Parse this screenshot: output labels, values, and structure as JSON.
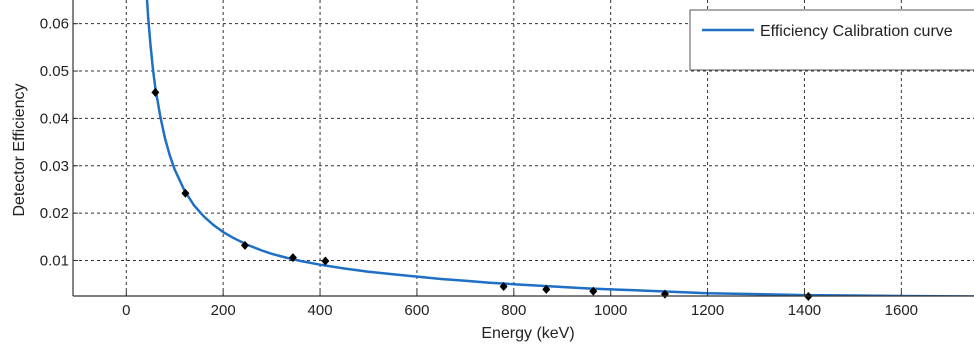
{
  "chart_data": {
    "type": "line",
    "xlabel": "Energy (keV)",
    "ylabel": "Detector Efficiency",
    "xlim": [
      -110,
      1750
    ],
    "ylim": [
      0.0025,
      0.065
    ],
    "xticks": [
      0,
      200,
      400,
      600,
      800,
      1000,
      1200,
      1400,
      1600
    ],
    "xtick_labels": [
      "0",
      "200",
      "400",
      "600",
      "800",
      "1000",
      "1200",
      "1400",
      "1600"
    ],
    "yticks": [
      0.01,
      0.02,
      0.03,
      0.04,
      0.05,
      0.06
    ],
    "ytick_labels": [
      "0.01",
      "0.02",
      "0.03",
      "0.04",
      "0.05",
      "0.06"
    ],
    "grid": true,
    "legend_position": "top-right",
    "series": [
      {
        "name": "Efficiency Calibration curve",
        "kind": "line",
        "color": "#1f6fc5",
        "x": [
          40,
          45,
          50,
          55,
          60,
          70,
          80,
          90,
          100,
          120,
          140,
          160,
          180,
          200,
          220,
          250,
          280,
          300,
          330,
          360,
          400,
          450,
          500,
          550,
          600,
          650,
          700,
          750,
          800,
          850,
          900,
          950,
          1000,
          1050,
          1100,
          1150,
          1200,
          1300,
          1400,
          1500,
          1600,
          1750
        ],
        "y": [
          0.0695,
          0.0615,
          0.0555,
          0.0505,
          0.0465,
          0.0405,
          0.0358,
          0.0321,
          0.0292,
          0.0248,
          0.0216,
          0.0193,
          0.0175,
          0.016,
          0.0148,
          0.0133,
          0.0121,
          0.0114,
          0.0106,
          0.0099,
          0.0091,
          0.0083,
          0.0076,
          0.0071,
          0.0066,
          0.0061,
          0.0057,
          0.0053,
          0.005,
          0.0047,
          0.0044,
          0.0041,
          0.0039,
          0.0037,
          0.0035,
          0.0033,
          0.0031,
          0.0029,
          0.0027,
          0.0026,
          0.0025,
          0.0024
        ]
      },
      {
        "kind": "scatter",
        "color": "#000000",
        "x": [
          60,
          122,
          245,
          344,
          411,
          779,
          867,
          964,
          1112,
          1408
        ],
        "y": [
          0.0455,
          0.0242,
          0.0132,
          0.0106,
          0.0099,
          0.0045,
          0.0039,
          0.0035,
          0.0029,
          0.0024
        ]
      }
    ]
  }
}
